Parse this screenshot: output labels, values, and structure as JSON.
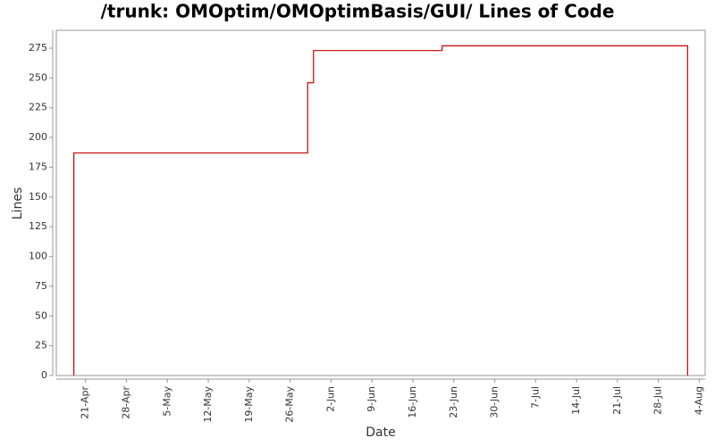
{
  "chart_data": {
    "type": "step-line",
    "title": "/trunk: OMOptim/OMOptimBasis/GUI/ Lines of Code",
    "x_label": "Date",
    "y_label": "Lines",
    "color": "#cc0000",
    "x": [
      "04-19",
      "04-19",
      "05-29",
      "05-30",
      "06-21",
      "08-02",
      "08-02"
    ],
    "values": [
      0,
      187,
      246,
      273,
      277,
      277,
      0
    ],
    "xlim": [
      "04-16",
      "08-05"
    ],
    "xticks": [
      {
        "value": "04-21",
        "label": "21-Apr"
      },
      {
        "value": "04-28",
        "label": "28-Apr"
      },
      {
        "value": "05-05",
        "label": "5-May"
      },
      {
        "value": "05-12",
        "label": "12-May"
      },
      {
        "value": "05-19",
        "label": "19-May"
      },
      {
        "value": "05-26",
        "label": "26-May"
      },
      {
        "value": "06-02",
        "label": "2-Jun"
      },
      {
        "value": "06-09",
        "label": "9-Jun"
      },
      {
        "value": "06-16",
        "label": "16-Jun"
      },
      {
        "value": "06-23",
        "label": "23-Jun"
      },
      {
        "value": "06-30",
        "label": "30-Jun"
      },
      {
        "value": "07-07",
        "label": "7-Jul"
      },
      {
        "value": "07-14",
        "label": "14-Jul"
      },
      {
        "value": "07-21",
        "label": "21-Jul"
      },
      {
        "value": "07-28",
        "label": "28-Jul"
      },
      {
        "value": "08-04",
        "label": "4-Aug"
      }
    ],
    "ylim": [
      0,
      290
    ],
    "yticks": [
      0,
      25,
      50,
      75,
      100,
      125,
      150,
      175,
      200,
      225,
      250,
      275
    ],
    "grid": false
  }
}
